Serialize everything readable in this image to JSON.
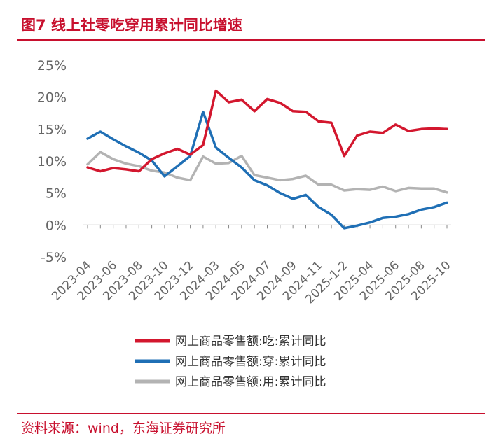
{
  "title": "图7  线上社零吃穿用累计同比增速",
  "source": "资料来源：wind，东海证券研究所",
  "colors": {
    "accent": "#c8102e",
    "food": "#d3172e",
    "clothing": "#1f6fb5",
    "daily": "#b3b3b3"
  },
  "chart_data": {
    "type": "line",
    "title": "线上社零吃穿用累计同比增速",
    "xlabel": "",
    "ylabel": "",
    "ylim": [
      -5,
      25
    ],
    "yticks": [
      "25%",
      "20%",
      "15%",
      "10%",
      "5%",
      "0%",
      "-5%"
    ],
    "ytick_values": [
      25,
      20,
      15,
      10,
      5,
      0,
      -5
    ],
    "x": [
      "2023-04",
      "2023-05",
      "2023-06",
      "2023-07",
      "2023-08",
      "2023-09",
      "2023-10",
      "2023-11",
      "2023-12",
      "2024-01-02",
      "2024-03",
      "2024-04",
      "2024-05",
      "2024-06",
      "2024-07",
      "2024-08",
      "2024-09",
      "2024-10",
      "2024-11",
      "2024-12",
      "2025-1-2",
      "2025-03",
      "2025-04",
      "2025-05",
      "2025-06",
      "2025-07",
      "2025-08",
      "2025-09",
      "2025-10"
    ],
    "xtick_labels": [
      "2023-04",
      "2023-06",
      "2023-08",
      "2023-10",
      "2023-12",
      "2024-03",
      "2024-05",
      "2024-07",
      "2024-09",
      "2024-11",
      "2025-1-2",
      "2025-04",
      "2025-06",
      "2025-08",
      "2025-10"
    ],
    "legend_position": "bottom",
    "series": [
      {
        "name": "网上商品零售额:吃:累计同比",
        "key": "food",
        "values": [
          9.0,
          8.4,
          8.9,
          8.7,
          8.4,
          10.3,
          11.2,
          11.9,
          11.0,
          12.5,
          21.0,
          19.2,
          19.6,
          17.8,
          19.7,
          19.1,
          17.8,
          17.7,
          16.2,
          16.0,
          10.8,
          14.0,
          14.6,
          14.4,
          15.7,
          14.7,
          15.0,
          15.1,
          15.0
        ]
      },
      {
        "name": "网上商品零售额:穿:累计同比",
        "key": "clothing",
        "values": [
          13.5,
          14.6,
          13.4,
          12.3,
          11.3,
          10.1,
          7.6,
          9.2,
          10.8,
          17.7,
          12.1,
          10.5,
          9.0,
          7.0,
          6.2,
          5.0,
          4.1,
          4.7,
          2.8,
          1.6,
          -0.5,
          -0.1,
          0.4,
          1.1,
          1.3,
          1.7,
          2.4,
          2.8,
          3.5
        ]
      },
      {
        "name": "网上商品零售额:用:累计同比",
        "key": "daily",
        "values": [
          9.5,
          11.4,
          10.3,
          9.6,
          9.2,
          8.5,
          8.2,
          7.4,
          7.0,
          10.7,
          9.6,
          9.7,
          10.8,
          7.8,
          7.4,
          7.0,
          7.2,
          7.7,
          6.3,
          6.3,
          5.4,
          5.6,
          5.5,
          6.0,
          5.3,
          5.8,
          5.7,
          5.7,
          5.1
        ]
      }
    ]
  }
}
